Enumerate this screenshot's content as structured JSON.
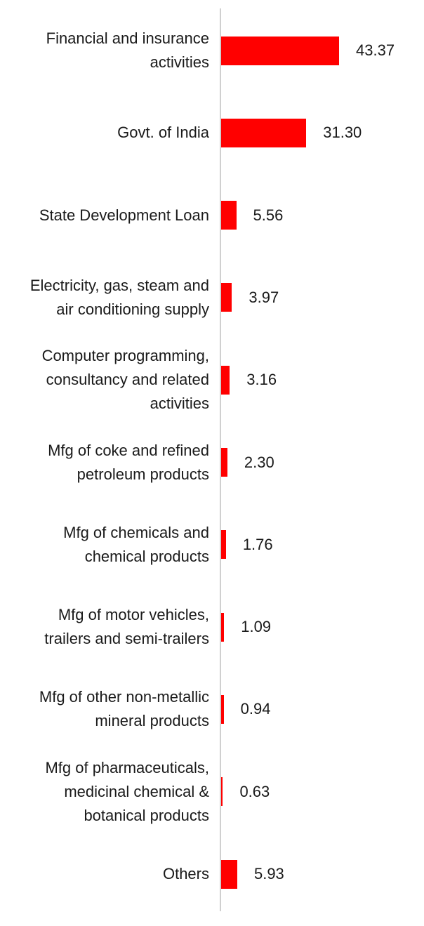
{
  "chart_data": {
    "type": "bar",
    "orientation": "horizontal",
    "categories": [
      "Financial and insurance\nactivities",
      "Govt. of India",
      "State Development Loan",
      "Electricity, gas, steam and\nair conditioning supply",
      "Computer programming,\nconsultancy and related\nactivities",
      "Mfg of coke and refined\npetroleum products",
      "Mfg of chemicals and\nchemical products",
      "Mfg of motor vehicles,\ntrailers and semi-trailers",
      "Mfg of other non-metallic\nmineral products",
      "Mfg of pharmaceuticals,\nmedicinal chemical &\nbotanical products",
      "Others"
    ],
    "values": [
      43.37,
      31.3,
      5.56,
      3.97,
      3.16,
      2.3,
      1.76,
      1.09,
      0.94,
      0.63,
      5.93
    ],
    "value_labels": [
      "43.37",
      "31.30",
      "5.56",
      "3.97",
      "3.16",
      "2.30",
      "1.76",
      "1.09",
      "0.94",
      "0.63",
      "5.93"
    ],
    "xlim": [
      0,
      43.37
    ],
    "grid": false,
    "bar_color": "#ff0000",
    "axis_color": "#d0d0d0",
    "label_color": "#1a1a1a"
  }
}
